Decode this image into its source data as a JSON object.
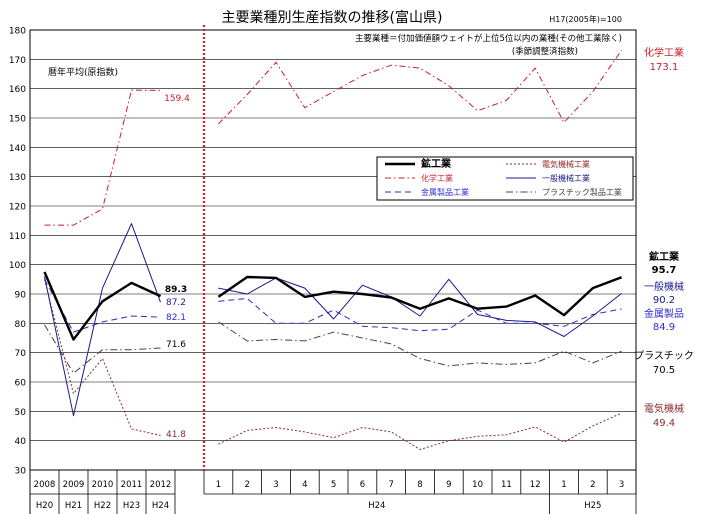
{
  "chart_data": {
    "type": "line",
    "title": "主要業種別生産指数の推移(富山県)",
    "base_note": "H17(2005年)=100",
    "note_lines": [
      "主要業種＝付加価値額ウェイトが上位5位以内の業種(その他工業除く)",
      "(季節調整済指数)"
    ],
    "annual_note": "暦年平均(原指数)",
    "ylim": [
      30,
      180
    ],
    "yticks": [
      30,
      40,
      50,
      60,
      70,
      80,
      90,
      100,
      110,
      120,
      130,
      140,
      150,
      160,
      170,
      180
    ],
    "annual": {
      "years": [
        "2008",
        "2009",
        "2010",
        "2011",
        "2012"
      ],
      "eras": [
        "H20",
        "H21",
        "H22",
        "H23",
        "H24"
      ]
    },
    "monthly": {
      "months": [
        "1",
        "2",
        "3",
        "4",
        "5",
        "6",
        "7",
        "8",
        "9",
        "10",
        "11",
        "12",
        "1",
        "2",
        "3"
      ],
      "year_labels": [
        "H24",
        "H25"
      ]
    },
    "series": [
      {
        "key": "kougyou",
        "name": "鉱工業",
        "color": "#000000",
        "width": 2.4,
        "dash": "",
        "annual": [
          97.5,
          74.5,
          87.5,
          93.8,
          89.3
        ],
        "monthly": [
          89.0,
          95.8,
          95.5,
          89.0,
          90.8,
          90.0,
          88.8,
          85.0,
          88.5,
          85.0,
          85.7,
          89.5,
          82.8,
          92.0,
          95.7
        ],
        "end_value": "95.7",
        "annual_value": "89.3"
      },
      {
        "key": "denki",
        "name": "電気機械工業",
        "color": "#8b2a2a",
        "width": 1,
        "dash": "2,2",
        "annual": [
          95.0,
          56.0,
          68.0,
          44.0,
          41.8
        ],
        "monthly": [
          38.8,
          43.5,
          44.5,
          43.0,
          41.0,
          44.5,
          43.0,
          37.0,
          40.0,
          41.5,
          42.0,
          44.7,
          39.5,
          45.0,
          49.4
        ],
        "end_value": "49.4",
        "annual_value": "41.8"
      },
      {
        "key": "kagaku",
        "name": "化学工業",
        "color": "#cc1f2d",
        "width": 1,
        "dash": "6,3,1.5,3",
        "annual": [
          113.5,
          113.5,
          119.0,
          159.5,
          159.4
        ],
        "monthly": [
          148.0,
          158.0,
          169.0,
          153.5,
          159.0,
          164.5,
          168.0,
          167.0,
          161.0,
          152.5,
          156.0,
          167.0,
          148.5,
          159.0,
          173.1
        ],
        "end_value": "173.1",
        "annual_value": "159.4"
      },
      {
        "key": "ippan",
        "name": "一般機械工業",
        "color": "#1a1a8c",
        "width": 1,
        "dash": "",
        "annual": [
          96.0,
          48.5,
          92.0,
          114.0,
          87.2
        ],
        "monthly": [
          92.0,
          90.0,
          95.5,
          92.0,
          81.5,
          93.0,
          89.0,
          82.5,
          95.0,
          83.0,
          81.0,
          80.5,
          75.5,
          82.5,
          90.2
        ],
        "end_value": "90.2",
        "annual_value": "87.2"
      },
      {
        "key": "kinzoku",
        "name": "金属製品工業",
        "color": "#2b2bd1",
        "width": 1,
        "dash": "6,4",
        "annual": [
          95.0,
          77.0,
          80.5,
          82.5,
          82.1
        ],
        "monthly": [
          87.5,
          88.5,
          80.0,
          80.0,
          84.5,
          79.0,
          78.5,
          77.5,
          78.0,
          84.5,
          80.0,
          80.0,
          79.0,
          83.0,
          84.9
        ],
        "end_value": "84.9",
        "annual_value": "82.1"
      },
      {
        "key": "plastic",
        "name": "プラスチック製品工業",
        "color": "#444444",
        "width": 1,
        "dash": "7,3,1.5,3",
        "annual": [
          79.5,
          63.0,
          71.0,
          71.0,
          71.6
        ],
        "monthly": [
          80.5,
          74.0,
          74.5,
          74.0,
          77.0,
          75.0,
          73.0,
          68.0,
          65.5,
          66.5,
          66.0,
          66.5,
          70.5,
          66.5,
          70.5
        ],
        "end_value": "70.5",
        "annual_value": "71.6"
      }
    ],
    "right_labels": [
      {
        "series": "kagaku",
        "label": "化学工業",
        "value": "173.1"
      },
      {
        "series": "kougyou",
        "label": "鉱工業",
        "value": "95.7"
      },
      {
        "series": "ippan",
        "label": "一般機械",
        "value": "90.2"
      },
      {
        "series": "kinzoku",
        "label": "金属製品",
        "value": "84.9"
      },
      {
        "series": "plastic",
        "label": "プラスチック",
        "value": "70.5"
      },
      {
        "series": "denki",
        "label": "電気機械",
        "value": "49.4"
      }
    ],
    "grid": true,
    "legend_position": "center-right"
  }
}
